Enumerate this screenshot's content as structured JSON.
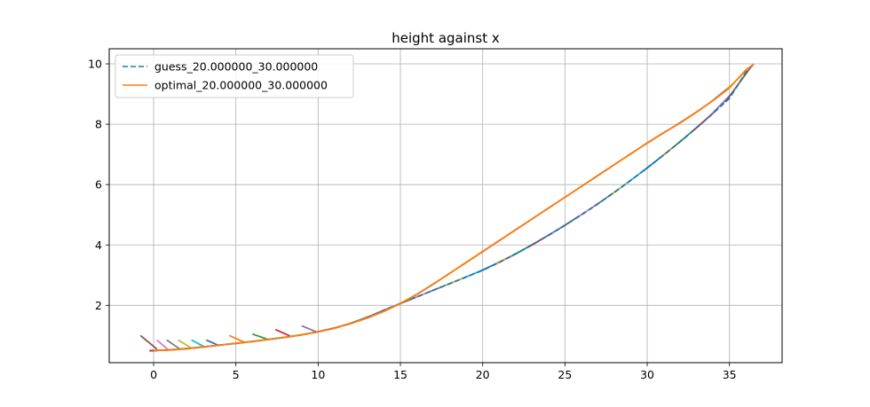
{
  "chart_data": {
    "type": "line",
    "title": "height against x",
    "xlabel": "",
    "ylabel": "",
    "xlim": [
      -2.7,
      38.2
    ],
    "ylim": [
      0.1,
      10.5
    ],
    "xticks": [
      0,
      5,
      10,
      15,
      20,
      25,
      30,
      35
    ],
    "yticks": [
      2,
      4,
      6,
      8,
      10
    ],
    "grid": true,
    "legend_position": "top-left",
    "series": [
      {
        "name": "guess_20.000000_30.000000",
        "color": "#1f77b4",
        "dash": "dashed",
        "x": [
          0,
          1,
          2,
          3,
          4,
          5,
          6,
          7,
          8,
          9,
          10,
          11,
          12,
          13,
          14,
          15,
          16,
          17,
          18,
          19,
          20,
          21,
          22,
          23,
          24,
          25,
          26,
          27,
          28,
          29,
          30,
          31,
          32,
          33,
          34,
          35,
          36,
          36.5
        ],
        "y": [
          0.5,
          0.52,
          0.56,
          0.62,
          0.68,
          0.74,
          0.8,
          0.87,
          0.94,
          1.02,
          1.12,
          1.24,
          1.4,
          1.6,
          1.84,
          2.06,
          2.28,
          2.5,
          2.72,
          2.94,
          3.16,
          3.42,
          3.7,
          4.0,
          4.32,
          4.65,
          5.0,
          5.36,
          5.74,
          6.14,
          6.55,
          6.98,
          7.42,
          7.88,
          8.36,
          8.86,
          9.72,
          10.0
        ]
      },
      {
        "name": "optimal_20.000000_30.000000",
        "color": "#ff7f0e",
        "dash": "solid",
        "x": [
          0,
          1,
          2,
          3,
          4,
          5,
          6,
          7,
          8,
          9,
          10,
          11,
          12,
          13,
          14,
          15,
          16,
          17,
          18,
          19,
          20,
          21,
          22,
          23,
          24,
          25,
          26,
          27,
          28,
          29,
          30,
          31,
          32,
          33,
          34,
          35,
          36,
          36.5
        ],
        "y": [
          0.5,
          0.52,
          0.56,
          0.62,
          0.68,
          0.74,
          0.8,
          0.87,
          0.94,
          1.02,
          1.12,
          1.24,
          1.4,
          1.58,
          1.8,
          2.06,
          2.36,
          2.7,
          3.06,
          3.42,
          3.78,
          4.14,
          4.5,
          4.86,
          5.22,
          5.58,
          5.94,
          6.3,
          6.66,
          7.02,
          7.38,
          7.72,
          8.04,
          8.4,
          8.78,
          9.2,
          9.8,
          10.0
        ]
      }
    ],
    "tangent_colors": [
      "#1f77b4",
      "#ff7f0e",
      "#2ca02c",
      "#d62728",
      "#9467bd",
      "#8c564b",
      "#e377c2",
      "#7f7f7f",
      "#bcbd22",
      "#17becf"
    ]
  }
}
